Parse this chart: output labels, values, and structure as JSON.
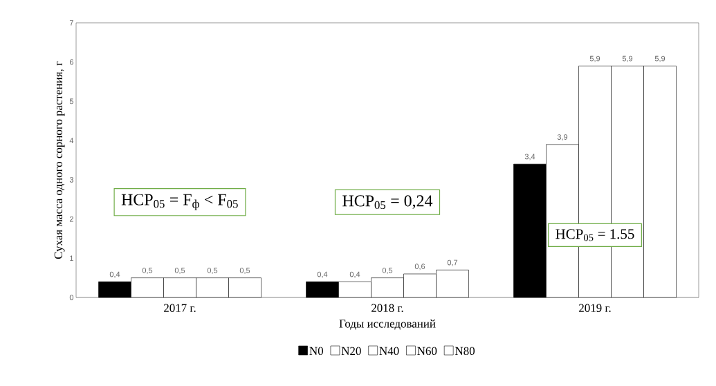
{
  "chart_data": {
    "type": "bar",
    "xlabel": "Годы исследований",
    "ylabel": "Сухая масса одного сорного растения, г",
    "categories": [
      "2017 г.",
      "2018 г.",
      "2019 г."
    ],
    "series": [
      {
        "name": "N0",
        "color": "#000000",
        "values": [
          0.4,
          0.4,
          3.4
        ],
        "value_labels": [
          "0,4",
          "0,4",
          "3,4"
        ]
      },
      {
        "name": "N20",
        "color": "#000000",
        "values": [
          0.5,
          0.4,
          3.9
        ],
        "value_labels": [
          "0,5",
          "0,4",
          "3,9"
        ]
      },
      {
        "name": "N40",
        "color": "#000000",
        "values": [
          0.5,
          0.5,
          5.9
        ],
        "value_labels": [
          "0,5",
          "0,5",
          "5,9"
        ]
      },
      {
        "name": "N60",
        "color": "#000000",
        "values": [
          0.5,
          0.6,
          5.9
        ],
        "value_labels": [
          "0,5",
          "0,6",
          "5,9"
        ]
      },
      {
        "name": "N80",
        "color": "#000000",
        "values": [
          0.5,
          0.7,
          5.9
        ],
        "value_labels": [
          "0,5",
          "0,7",
          "5,9"
        ]
      }
    ],
    "ylim": [
      0,
      7
    ],
    "yticks": [
      0,
      1,
      2,
      3,
      4,
      5,
      6,
      7
    ],
    "grid": false,
    "legend": "bottom",
    "annotations": [
      "НСР$_{05}$ = F$_{ф}$ < F$_{05}$",
      "НСР$_{05}$ = 0,24",
      "НСР$_{05}$ = 1.55"
    ]
  }
}
